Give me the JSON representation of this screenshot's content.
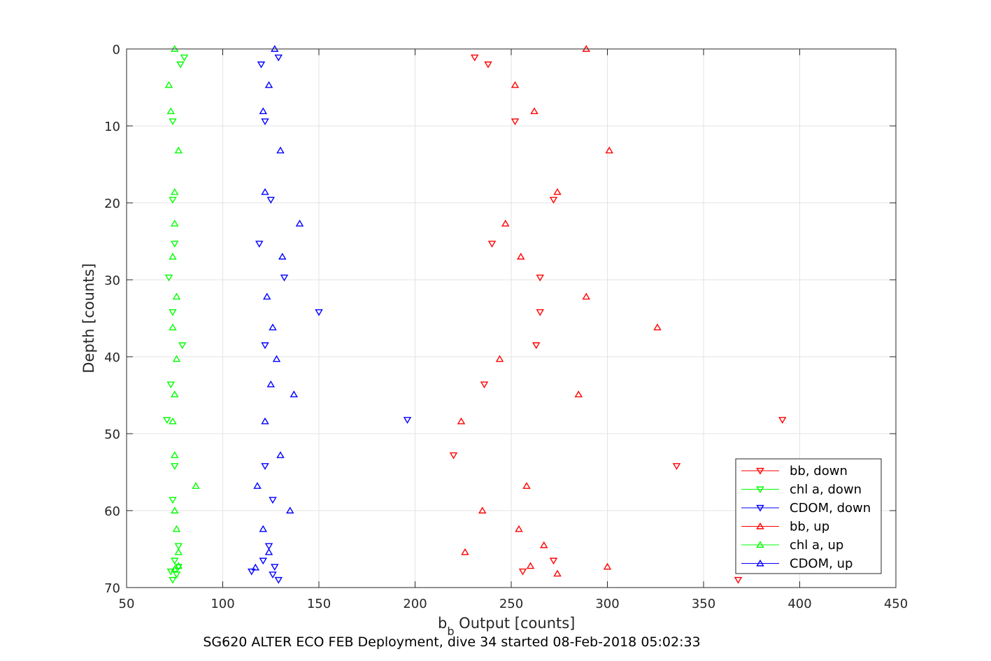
{
  "chart_data": {
    "type": "scatter",
    "xlabel_main": "b",
    "xlabel_sub": "b",
    "xlabel_rest": " Output [counts]",
    "ylabel": "Depth [counts]",
    "footer": "SG620 ALTER ECO FEB Deployment, dive 34 started 08-Feb-2018 05:02:33",
    "xlim": [
      50,
      450
    ],
    "ylim": [
      0,
      70
    ],
    "y_reversed": true,
    "grid": true,
    "legend_placement": "bottom-right",
    "xticks": [
      50,
      100,
      150,
      200,
      250,
      300,
      350,
      400,
      450
    ],
    "yticks": [
      0,
      10,
      20,
      30,
      40,
      50,
      60,
      70
    ],
    "series": [
      {
        "name": "bb, down",
        "marker": "triangle-down",
        "color": "#ff0000",
        "points": [
          [
            231,
            1.1
          ],
          [
            238,
            2.0
          ],
          [
            252,
            9.4
          ],
          [
            272,
            19.6
          ],
          [
            240,
            25.3
          ],
          [
            265,
            29.7
          ],
          [
            265,
            34.2
          ],
          [
            263,
            38.5
          ],
          [
            236,
            43.6
          ],
          [
            391,
            48.2
          ],
          [
            220,
            52.8
          ],
          [
            336,
            54.2
          ],
          [
            272,
            66.5
          ],
          [
            256,
            67.9
          ],
          [
            368,
            69.0
          ]
        ]
      },
      {
        "name": "chl a, down",
        "marker": "triangle-down",
        "color": "#00ff00",
        "points": [
          [
            80,
            1.1
          ],
          [
            78,
            2.0
          ],
          [
            74,
            9.4
          ],
          [
            74,
            19.6
          ],
          [
            75,
            25.3
          ],
          [
            72,
            29.7
          ],
          [
            74,
            34.2
          ],
          [
            79,
            38.5
          ],
          [
            73,
            43.6
          ],
          [
            71,
            48.2
          ],
          [
            75,
            54.2
          ],
          [
            74,
            58.6
          ],
          [
            77,
            64.6
          ],
          [
            75,
            66.5
          ],
          [
            77,
            67.3
          ],
          [
            73,
            67.9
          ],
          [
            76,
            68.3
          ],
          [
            74,
            69.0
          ]
        ]
      },
      {
        "name": "CDOM, down",
        "marker": "triangle-down",
        "color": "#0000ff",
        "points": [
          [
            129,
            1.1
          ],
          [
            120,
            2.0
          ],
          [
            122,
            9.4
          ],
          [
            125,
            19.6
          ],
          [
            119,
            25.3
          ],
          [
            132,
            29.7
          ],
          [
            150,
            34.2
          ],
          [
            122,
            38.5
          ],
          [
            196,
            48.2
          ],
          [
            122,
            54.2
          ],
          [
            126,
            58.6
          ],
          [
            124,
            64.6
          ],
          [
            121,
            66.5
          ],
          [
            127,
            67.3
          ],
          [
            115,
            67.9
          ],
          [
            126,
            68.3
          ],
          [
            129,
            69.0
          ]
        ]
      },
      {
        "name": "bb, up",
        "marker": "triangle-up",
        "color": "#ff0000",
        "points": [
          [
            289,
            0.0
          ],
          [
            252,
            4.7
          ],
          [
            262,
            8.1
          ],
          [
            301,
            13.2
          ],
          [
            274,
            18.6
          ],
          [
            247,
            22.7
          ],
          [
            255,
            27.0
          ],
          [
            289,
            32.2
          ],
          [
            326,
            36.2
          ],
          [
            244,
            40.3
          ],
          [
            285,
            44.9
          ],
          [
            224,
            48.4
          ],
          [
            258,
            56.8
          ],
          [
            235,
            60.0
          ],
          [
            254,
            62.4
          ],
          [
            267,
            64.5
          ],
          [
            226,
            65.4
          ],
          [
            260,
            67.2
          ],
          [
            300,
            67.3
          ],
          [
            274,
            68.2
          ]
        ]
      },
      {
        "name": "chl a, up",
        "marker": "triangle-up",
        "color": "#00ff00",
        "points": [
          [
            75,
            0.0
          ],
          [
            72,
            4.7
          ],
          [
            73,
            8.1
          ],
          [
            77,
            13.2
          ],
          [
            75,
            18.6
          ],
          [
            75,
            22.7
          ],
          [
            74,
            27.0
          ],
          [
            76,
            32.2
          ],
          [
            74,
            36.2
          ],
          [
            76,
            40.3
          ],
          [
            75,
            44.9
          ],
          [
            74,
            48.4
          ],
          [
            75,
            52.8
          ],
          [
            86,
            56.8
          ],
          [
            75,
            60.0
          ],
          [
            76,
            62.4
          ],
          [
            77,
            65.4
          ],
          [
            77,
            67.2
          ],
          [
            75,
            67.6
          ]
        ]
      },
      {
        "name": "CDOM, up",
        "marker": "triangle-up",
        "color": "#0000ff",
        "points": [
          [
            127,
            0.0
          ],
          [
            124,
            4.7
          ],
          [
            121,
            8.1
          ],
          [
            130,
            13.2
          ],
          [
            122,
            18.6
          ],
          [
            140,
            22.7
          ],
          [
            131,
            27.0
          ],
          [
            123,
            32.2
          ],
          [
            126,
            36.2
          ],
          [
            128,
            40.3
          ],
          [
            125,
            43.6
          ],
          [
            137,
            44.9
          ],
          [
            122,
            48.4
          ],
          [
            130,
            52.8
          ],
          [
            118,
            56.8
          ],
          [
            135,
            60.0
          ],
          [
            121,
            62.4
          ],
          [
            124,
            65.4
          ],
          [
            117,
            67.4
          ]
        ]
      }
    ]
  }
}
